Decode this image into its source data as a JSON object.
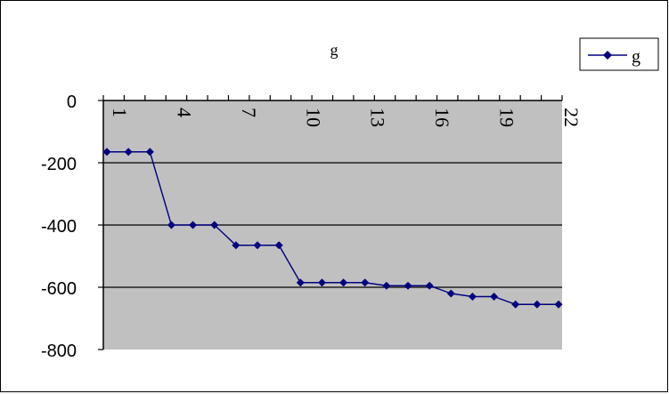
{
  "chart_data": {
    "type": "line",
    "title": "g",
    "xlabel": "",
    "ylabel": "",
    "x": [
      1,
      2,
      3,
      4,
      5,
      6,
      7,
      8,
      9,
      10,
      11,
      12,
      13,
      14,
      15,
      16,
      17,
      18,
      19,
      20,
      21,
      22
    ],
    "x_tick_labels": [
      "1",
      "4",
      "7",
      "10",
      "13",
      "16",
      "19",
      "22"
    ],
    "ylim": [
      -800,
      0
    ],
    "y_ticks": [
      0,
      -200,
      -400,
      -600,
      -800
    ],
    "y_tick_labels": [
      "0",
      "-200",
      "-400",
      "-600",
      "-800"
    ],
    "grid": true,
    "legend_position": "top-right",
    "series": [
      {
        "name": "g",
        "color": "#000080",
        "marker": "diamond",
        "values": [
          -165,
          -165,
          -165,
          -400,
          -400,
          -400,
          -465,
          -465,
          -465,
          -585,
          -585,
          -585,
          -585,
          -595,
          -595,
          -595,
          -620,
          -630,
          -630,
          -655,
          -655,
          -655
        ]
      }
    ],
    "colors": {
      "plot_background": "#c0c0c0",
      "gridline": "#000000",
      "series_line": "#000080"
    }
  }
}
